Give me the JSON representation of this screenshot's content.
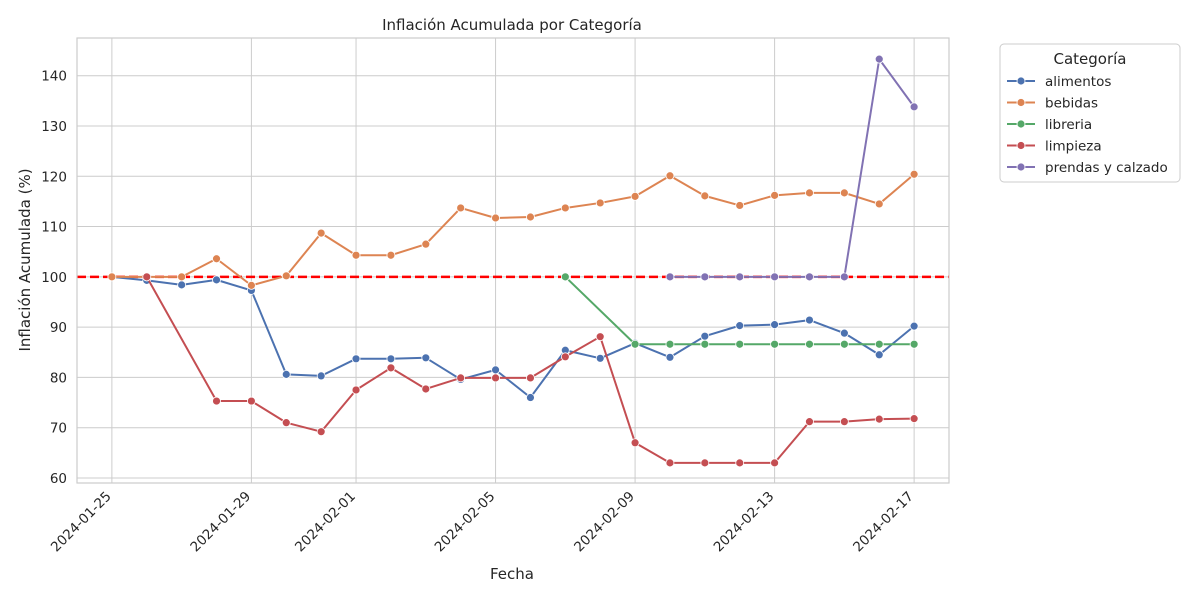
{
  "chart_data": {
    "type": "line",
    "title": "Inflación Acumulada por Categoría",
    "xlabel": "Fecha",
    "ylabel": "Inflación Acumulada (%)",
    "x_ticks": [
      "2024-01-25",
      "2024-01-29",
      "2024-02-01",
      "2024-02-05",
      "2024-02-09",
      "2024-02-13",
      "2024-02-17"
    ],
    "y_ticks": [
      60,
      70,
      80,
      90,
      100,
      110,
      120,
      130,
      140
    ],
    "xlim": [
      "2024-01-24",
      "2024-02-18"
    ],
    "ylim": [
      59,
      147.5
    ],
    "grid": true,
    "reference_line": {
      "y": 100,
      "color": "#ff0000",
      "style": "dashed"
    },
    "legend": {
      "title": "Categoría",
      "placement": "outside-top-right"
    },
    "series": [
      {
        "name": "alimentos",
        "color": "#4c72b0",
        "points": [
          [
            "2024-01-25",
            100.0
          ],
          [
            "2024-01-26",
            99.3
          ],
          [
            "2024-01-27",
            98.4
          ],
          [
            "2024-01-28",
            99.4
          ],
          [
            "2024-01-29",
            97.3
          ],
          [
            "2024-01-30",
            80.6
          ],
          [
            "2024-01-31",
            80.3
          ],
          [
            "2024-02-01",
            83.7
          ],
          [
            "2024-02-02",
            83.7
          ],
          [
            "2024-02-03",
            83.9
          ],
          [
            "2024-02-04",
            79.6
          ],
          [
            "2024-02-05",
            81.5
          ],
          [
            "2024-02-06",
            76.0
          ],
          [
            "2024-02-07",
            85.4
          ],
          [
            "2024-02-08",
            83.8
          ],
          [
            "2024-02-09",
            86.8
          ],
          [
            "2024-02-10",
            84.0
          ],
          [
            "2024-02-11",
            88.2
          ],
          [
            "2024-02-12",
            90.3
          ],
          [
            "2024-02-13",
            90.5
          ],
          [
            "2024-02-14",
            91.4
          ],
          [
            "2024-02-15",
            88.8
          ],
          [
            "2024-02-16",
            84.5
          ],
          [
            "2024-02-17",
            90.2
          ]
        ]
      },
      {
        "name": "bebidas",
        "color": "#dd8452",
        "points": [
          [
            "2024-01-25",
            100.0
          ],
          [
            "2024-01-26",
            100.0
          ],
          [
            "2024-01-27",
            100.0
          ],
          [
            "2024-01-28",
            103.6
          ],
          [
            "2024-01-29",
            98.3
          ],
          [
            "2024-01-30",
            100.2
          ],
          [
            "2024-01-31",
            108.7
          ],
          [
            "2024-02-01",
            104.3
          ],
          [
            "2024-02-02",
            104.3
          ],
          [
            "2024-02-03",
            106.5
          ],
          [
            "2024-02-04",
            113.7
          ],
          [
            "2024-02-05",
            111.7
          ],
          [
            "2024-02-06",
            111.9
          ],
          [
            "2024-02-07",
            113.7
          ],
          [
            "2024-02-08",
            114.7
          ],
          [
            "2024-02-09",
            116.0
          ],
          [
            "2024-02-10",
            120.1
          ],
          [
            "2024-02-11",
            116.1
          ],
          [
            "2024-02-12",
            114.2
          ],
          [
            "2024-02-13",
            116.2
          ],
          [
            "2024-02-14",
            116.7
          ],
          [
            "2024-02-15",
            116.7
          ],
          [
            "2024-02-16",
            114.5
          ],
          [
            "2024-02-17",
            120.4
          ]
        ]
      },
      {
        "name": "libreria",
        "color": "#55a868",
        "points": [
          [
            "2024-02-07",
            100.0
          ],
          [
            "2024-02-09",
            86.6
          ],
          [
            "2024-02-10",
            86.6
          ],
          [
            "2024-02-11",
            86.6
          ],
          [
            "2024-02-12",
            86.6
          ],
          [
            "2024-02-13",
            86.6
          ],
          [
            "2024-02-14",
            86.6
          ],
          [
            "2024-02-15",
            86.6
          ],
          [
            "2024-02-16",
            86.6
          ],
          [
            "2024-02-17",
            86.6
          ]
        ]
      },
      {
        "name": "limpieza",
        "color": "#c44e52",
        "points": [
          [
            "2024-01-26",
            100.0
          ],
          [
            "2024-01-28",
            75.3
          ],
          [
            "2024-01-29",
            75.3
          ],
          [
            "2024-01-30",
            71.0
          ],
          [
            "2024-01-31",
            69.2
          ],
          [
            "2024-02-01",
            77.5
          ],
          [
            "2024-02-02",
            81.9
          ],
          [
            "2024-02-03",
            77.7
          ],
          [
            "2024-02-04",
            79.9
          ],
          [
            "2024-02-05",
            79.9
          ],
          [
            "2024-02-06",
            79.9
          ],
          [
            "2024-02-07",
            84.1
          ],
          [
            "2024-02-08",
            88.1
          ],
          [
            "2024-02-09",
            67.0
          ],
          [
            "2024-02-10",
            63.0
          ],
          [
            "2024-02-11",
            63.0
          ],
          [
            "2024-02-12",
            63.0
          ],
          [
            "2024-02-13",
            63.0
          ],
          [
            "2024-02-14",
            71.2
          ],
          [
            "2024-02-15",
            71.2
          ],
          [
            "2024-02-16",
            71.7
          ],
          [
            "2024-02-17",
            71.8
          ]
        ]
      },
      {
        "name": "prendas y calzado",
        "color": "#8172b3",
        "points": [
          [
            "2024-02-10",
            100.0
          ],
          [
            "2024-02-11",
            100.0
          ],
          [
            "2024-02-12",
            100.0
          ],
          [
            "2024-02-13",
            100.0
          ],
          [
            "2024-02-14",
            100.0
          ],
          [
            "2024-02-15",
            100.0
          ],
          [
            "2024-02-16",
            143.3
          ],
          [
            "2024-02-17",
            133.8
          ]
        ]
      }
    ]
  }
}
